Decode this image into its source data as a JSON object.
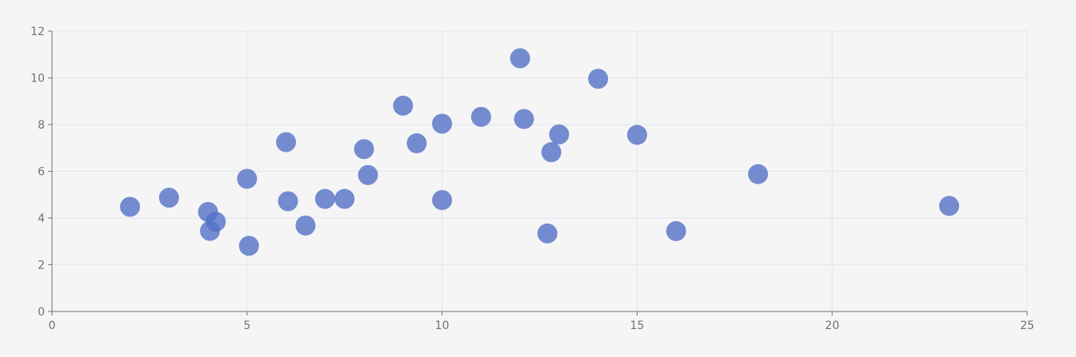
{
  "chart_data": {
    "type": "scatter",
    "title": "",
    "xlabel": "",
    "ylabel": "",
    "xlim": [
      0,
      25
    ],
    "ylim": [
      0,
      12
    ],
    "x_ticks": [
      0,
      5,
      10,
      15,
      20,
      25
    ],
    "y_ticks": [
      0,
      2,
      4,
      6,
      8,
      10,
      12
    ],
    "grid": true,
    "legend": "none",
    "colors": {
      "point": "#5470c6",
      "grid": "#e0e6f1",
      "axis": "#6e7079",
      "background": "#f5f5f5"
    },
    "series": [
      {
        "points": [
          [
            2.0,
            4.48
          ],
          [
            3.0,
            4.87
          ],
          [
            4.0,
            4.26
          ],
          [
            4.05,
            3.45
          ],
          [
            4.2,
            3.84
          ],
          [
            5.0,
            5.68
          ],
          [
            5.05,
            2.81
          ],
          [
            6.0,
            7.25
          ],
          [
            6.05,
            4.72
          ],
          [
            6.5,
            3.68
          ],
          [
            7.0,
            4.82
          ],
          [
            7.5,
            4.82
          ],
          [
            8.0,
            6.95
          ],
          [
            8.1,
            5.84
          ],
          [
            9.0,
            8.81
          ],
          [
            9.35,
            7.2
          ],
          [
            10.0,
            8.04
          ],
          [
            10.0,
            4.77
          ],
          [
            11.0,
            8.33
          ],
          [
            12.0,
            10.84
          ],
          [
            12.1,
            8.24
          ],
          [
            12.7,
            3.34
          ],
          [
            12.8,
            6.82
          ],
          [
            13.0,
            7.58
          ],
          [
            14.0,
            9.96
          ],
          [
            15.0,
            7.56
          ],
          [
            16.0,
            3.44
          ],
          [
            18.1,
            5.88
          ],
          [
            23.0,
            4.52
          ]
        ]
      }
    ]
  }
}
